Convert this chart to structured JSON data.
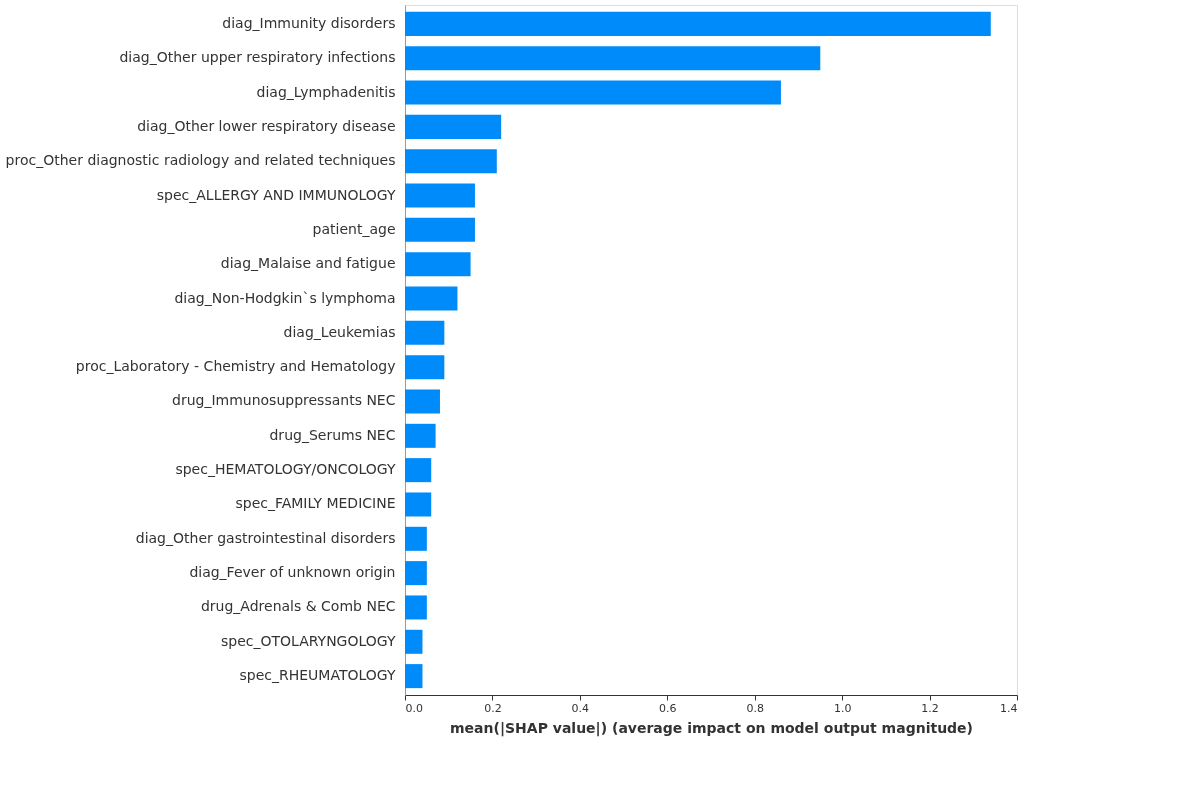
{
  "chart_data": {
    "type": "bar",
    "orientation": "horizontal",
    "xlabel": "mean(|SHAP value|) (average impact on model output magnitude)",
    "categories": [
      "diag_Immunity disorders",
      "diag_Other upper respiratory infections",
      "diag_Lymphadenitis",
      "diag_Other lower respiratory disease",
      "proc_Other diagnostic radiology and related techniques",
      "spec_ALLERGY AND IMMUNOLOGY",
      "patient_age",
      "diag_Malaise and fatigue",
      "diag_Non-Hodgkin`s lymphoma",
      "diag_Leukemias",
      "proc_Laboratory - Chemistry and Hematology",
      "drug_Immunosuppressants NEC",
      "drug_Serums NEC",
      "spec_HEMATOLOGY/ONCOLOGY",
      "spec_FAMILY MEDICINE",
      "diag_Other gastrointestinal disorders",
      "diag_Fever of unknown origin",
      "drug_Adrenals & Comb NEC",
      "spec_OTOLARYNGOLOGY",
      "spec_RHEUMATOLOGY"
    ],
    "values": [
      1.34,
      0.95,
      0.86,
      0.22,
      0.21,
      0.16,
      0.16,
      0.15,
      0.12,
      0.09,
      0.09,
      0.08,
      0.07,
      0.06,
      0.06,
      0.05,
      0.05,
      0.05,
      0.04,
      0.04
    ],
    "color": "#008bfb",
    "xlim": [
      0,
      1.4
    ],
    "xticks": [
      {
        "value": 0,
        "label": "0.0"
      },
      0.2,
      0.4,
      0.6,
      0.8,
      {
        "value": 1,
        "label": "1.0"
      },
      1.2,
      1.4
    ],
    "grid": false
  }
}
